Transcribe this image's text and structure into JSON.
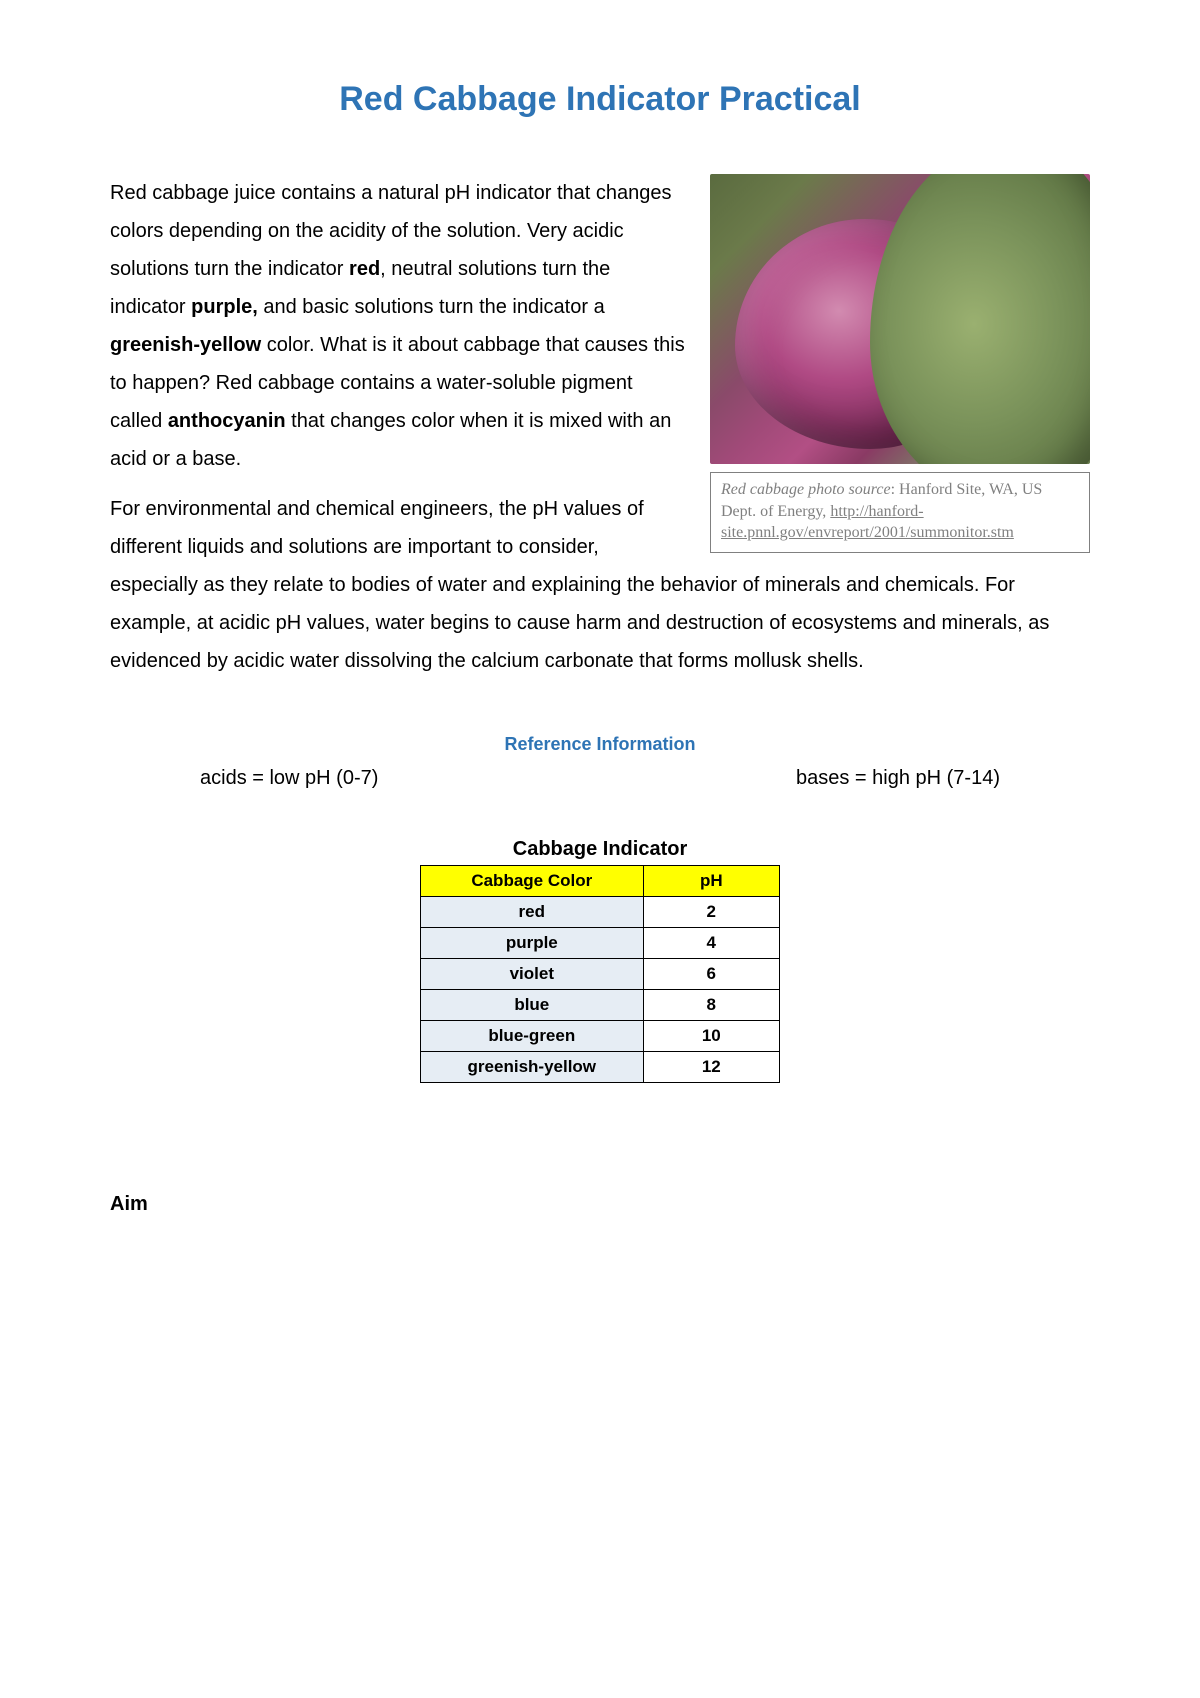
{
  "colors": {
    "title": "#2e74b5",
    "ref_heading": "#2e74b5",
    "body_text": "#000000",
    "caption_text": "#808080",
    "caption_border": "#808080",
    "table_header_bg": "#ffff00",
    "table_cell_bg": "#e6edf4",
    "table_border": "#000000",
    "page_bg": "#ffffff"
  },
  "title": "Red Cabbage Indicator Practical",
  "paragraph1": {
    "seg1": "Red cabbage juice contains a natural pH indicator that changes colors depending on the acidity of the solution. Very acidic solutions turn the indicator ",
    "b1": "red",
    "seg2": ", neutral solutions turn the indicator ",
    "b2": "purple,",
    "seg3": " and basic solutions turn the indicator a ",
    "b3": "greenish-yellow",
    "seg4": " color. What is it about cabbage that causes this to happen? Red cabbage contains a water-soluble pigment called ",
    "b4": "anthocyanin",
    "seg5": " that changes color when it is mixed with an acid or a base."
  },
  "paragraph2": "For environmental and chemical engineers, the pH values of different liquids and solutions are important to consider, especially as they relate to bodies of water and explaining the behavior of minerals and chemicals. For example, at acidic pH values, water begins to cause harm and destruction of ecosystems and minerals, as evidenced by acidic water dissolving the calcium carbonate that forms mollusk shells.",
  "caption": {
    "label": "Red cabbage photo source",
    "rest": ": Hanford Site, WA, US Dept. of Energy, ",
    "link_text": "http://hanford-site.pnnl.gov/envreport/2001/summonitor.stm",
    "link_href": "http://hanford-site.pnnl.gov/envreport/2001/summonitor.stm"
  },
  "reference": {
    "heading": "Reference Information",
    "acids": "acids = low pH (0-7)",
    "bases": "bases = high pH (7-14)"
  },
  "table": {
    "title": "Cabbage Indicator",
    "header_color": "Cabbage Color",
    "header_ph": "pH",
    "rows": [
      {
        "color": "red",
        "ph": "2"
      },
      {
        "color": "purple",
        "ph": "4"
      },
      {
        "color": "violet",
        "ph": "6"
      },
      {
        "color": "blue",
        "ph": "8"
      },
      {
        "color": "blue-green",
        "ph": "10"
      },
      {
        "color": "greenish-yellow",
        "ph": "12"
      }
    ]
  },
  "aim_heading": "Aim"
}
